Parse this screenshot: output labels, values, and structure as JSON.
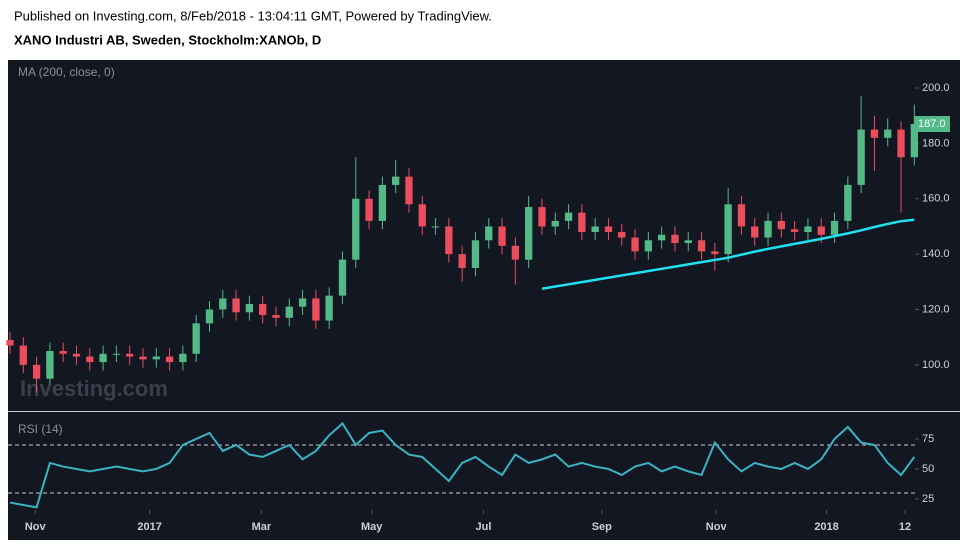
{
  "header": {
    "published": "Published on Investing.com, 8/Feb/2018 - 13:04:11 GMT, Powered by TradingView.",
    "title": "XANO Industri AB, Sweden, Stockholm:XANOb, D",
    "watermark": "Investing.com"
  },
  "chart_data": [
    {
      "type": "candlestick",
      "label": "MA (200, close, 0)",
      "up_color": "#53b987",
      "down_color": "#eb4d5c",
      "xlim": [
        -0.15,
        68.05
      ],
      "ylim": [
        83.7,
        209.4
      ],
      "xticks": [
        {
          "value": 1.9,
          "label": "Nov"
        },
        {
          "value": 10.5,
          "label": "2017"
        },
        {
          "value": 18.9,
          "label": "Mar"
        },
        {
          "value": 27.2,
          "label": "May"
        },
        {
          "value": 35.6,
          "label": "Jul"
        },
        {
          "value": 44.5,
          "label": "Sep"
        },
        {
          "value": 53.1,
          "label": "Nov"
        },
        {
          "value": 61.4,
          "label": "2018"
        },
        {
          "value": 67.3,
          "label": "12"
        }
      ],
      "yticks": [
        {
          "value": 100,
          "label": "100.0"
        },
        {
          "value": 120,
          "label": "120.0"
        },
        {
          "value": 140,
          "label": "140.0"
        },
        {
          "value": 160,
          "label": "160.0"
        },
        {
          "value": 180,
          "label": "180.0"
        },
        {
          "value": 200,
          "label": "200.0"
        }
      ],
      "last_price": {
        "value": 187,
        "label": "187.0"
      },
      "open": [
        109,
        107,
        100,
        95,
        105,
        104,
        103,
        101,
        104,
        104,
        103,
        102,
        103,
        101,
        104,
        115,
        120,
        124,
        119,
        122,
        118,
        117,
        121,
        124,
        116,
        125,
        138,
        160,
        152,
        165,
        168,
        158,
        150,
        150,
        140,
        135,
        145,
        150,
        143,
        138,
        157,
        150,
        152,
        155,
        148,
        150,
        148,
        146,
        141,
        145,
        147,
        144,
        145,
        141,
        140,
        158,
        150,
        146,
        152,
        149,
        148,
        150,
        147,
        152,
        165,
        185,
        182,
        185,
        175
      ],
      "high": [
        112,
        110,
        103,
        108,
        108,
        107,
        106,
        107,
        107,
        107,
        106,
        106,
        106,
        107,
        118,
        123,
        127,
        127,
        125,
        125,
        121,
        124,
        127,
        127,
        128,
        141,
        175,
        163,
        168,
        174,
        171,
        161,
        153,
        153,
        143,
        148,
        153,
        153,
        146,
        161,
        160,
        155,
        158,
        158,
        153,
        153,
        151,
        149,
        148,
        150,
        150,
        148,
        148,
        144,
        164,
        161,
        153,
        155,
        155,
        152,
        153,
        153,
        155,
        168,
        197,
        190,
        189,
        188,
        194
      ],
      "low": [
        104,
        97,
        90,
        93,
        101,
        100,
        98,
        98,
        101,
        100,
        99,
        99,
        98,
        98,
        101,
        112,
        117,
        116,
        116,
        115,
        114,
        114,
        118,
        113,
        113,
        122,
        135,
        149,
        149,
        162,
        155,
        147,
        147,
        137,
        130,
        132,
        142,
        140,
        129,
        135,
        147,
        147,
        149,
        145,
        145,
        145,
        143,
        138,
        138,
        142,
        141,
        141,
        138,
        134,
        137,
        147,
        143,
        143,
        146,
        145,
        145,
        144,
        144,
        149,
        162,
        170,
        179,
        155,
        172
      ],
      "close": [
        107,
        100,
        95,
        105,
        104,
        103,
        101,
        104,
        104,
        103,
        102,
        103,
        101,
        104,
        115,
        120,
        124,
        119,
        122,
        118,
        117,
        121,
        124,
        116,
        125,
        138,
        160,
        152,
        165,
        168,
        158,
        150,
        150,
        140,
        135,
        145,
        150,
        143,
        138,
        157,
        150,
        152,
        155,
        148,
        150,
        148,
        146,
        141,
        145,
        147,
        144,
        145,
        141,
        140,
        158,
        150,
        146,
        152,
        149,
        148,
        150,
        147,
        152,
        165,
        185,
        182,
        185,
        175,
        187
      ],
      "ma": {
        "color": "#1ee0f0",
        "values": [
          null,
          null,
          null,
          null,
          null,
          null,
          null,
          null,
          null,
          null,
          null,
          null,
          null,
          null,
          null,
          null,
          null,
          null,
          null,
          null,
          null,
          null,
          null,
          null,
          null,
          null,
          null,
          null,
          null,
          null,
          null,
          null,
          null,
          null,
          null,
          null,
          null,
          null,
          null,
          null,
          127.5,
          128.3,
          129.1,
          129.9,
          130.7,
          131.5,
          132.3,
          133.1,
          133.9,
          134.7,
          135.5,
          136.3,
          137.1,
          137.9,
          138.7,
          139.8,
          140.9,
          141.9,
          142.8,
          143.7,
          144.6,
          145.5,
          146.5,
          147.5,
          148.6,
          149.8,
          150.9,
          151.9,
          152.4
        ]
      }
    },
    {
      "type": "line",
      "label": "RSI (14)",
      "color": "#3bb3c3",
      "ylim": [
        15.8,
        95.8
      ],
      "yticks": [
        25,
        50,
        75
      ],
      "bands": [
        70,
        30
      ],
      "values": [
        22,
        20,
        18,
        55,
        52,
        50,
        48,
        50,
        52,
        50,
        48,
        50,
        55,
        70,
        75,
        80,
        65,
        70,
        62,
        60,
        65,
        70,
        58,
        65,
        78,
        88,
        70,
        80,
        82,
        70,
        62,
        60,
        50,
        40,
        55,
        60,
        52,
        45,
        62,
        55,
        58,
        62,
        52,
        55,
        52,
        50,
        45,
        52,
        55,
        48,
        52,
        48,
        45,
        72,
        58,
        48,
        55,
        52,
        50,
        55,
        50,
        58,
        75,
        85,
        72,
        70,
        55,
        45,
        60
      ]
    }
  ]
}
